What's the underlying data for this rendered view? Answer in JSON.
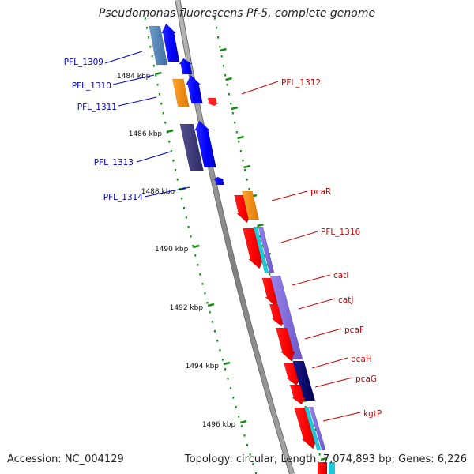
{
  "title": "Pseudomonas fluorescens Pf-5, complete genome",
  "footer": {
    "accession": "Accession: NC_004129",
    "summary": "Topology: circular; Length: 7,074,893 bp; Genes: 6,226"
  },
  "colors": {
    "backbone": "#8c8c8c",
    "tick": "#1a8a1a",
    "forward_label": "#0000cc",
    "reverse_label": "#cc0000"
  },
  "kbp_labels": [
    "1484 kbp",
    "1486 kbp",
    "1488 kbp",
    "1490 kbp",
    "1492 kbp",
    "1494 kbp",
    "1496 kbp"
  ],
  "genes": [
    {
      "id": "PFL_1309",
      "label": "PFL_1309",
      "strand": "+"
    },
    {
      "id": "PFL_1310",
      "label": "PFL_1310",
      "strand": "+"
    },
    {
      "id": "PFL_1311",
      "label": "PFL_1311",
      "strand": "+"
    },
    {
      "id": "PFL_1312",
      "label": "PFL_1312",
      "strand": "-"
    },
    {
      "id": "PFL_1313",
      "label": "PFL_1313",
      "strand": "+"
    },
    {
      "id": "PFL_1314",
      "label": "PFL_1314",
      "strand": "+"
    },
    {
      "id": "pcaR",
      "label": "pcaR",
      "strand": "-"
    },
    {
      "id": "PFL_1316",
      "label": "PFL_1316",
      "strand": "-"
    },
    {
      "id": "catI",
      "label": "catI",
      "strand": "-"
    },
    {
      "id": "catJ",
      "label": "catJ",
      "strand": "-"
    },
    {
      "id": "pcaF",
      "label": "pcaF",
      "strand": "-"
    },
    {
      "id": "pcaH",
      "label": "pcaH",
      "strand": "-"
    },
    {
      "id": "pcaG",
      "label": "pcaG",
      "strand": "-"
    },
    {
      "id": "kgtP",
      "label": "kgtP",
      "strand": "-"
    }
  ]
}
